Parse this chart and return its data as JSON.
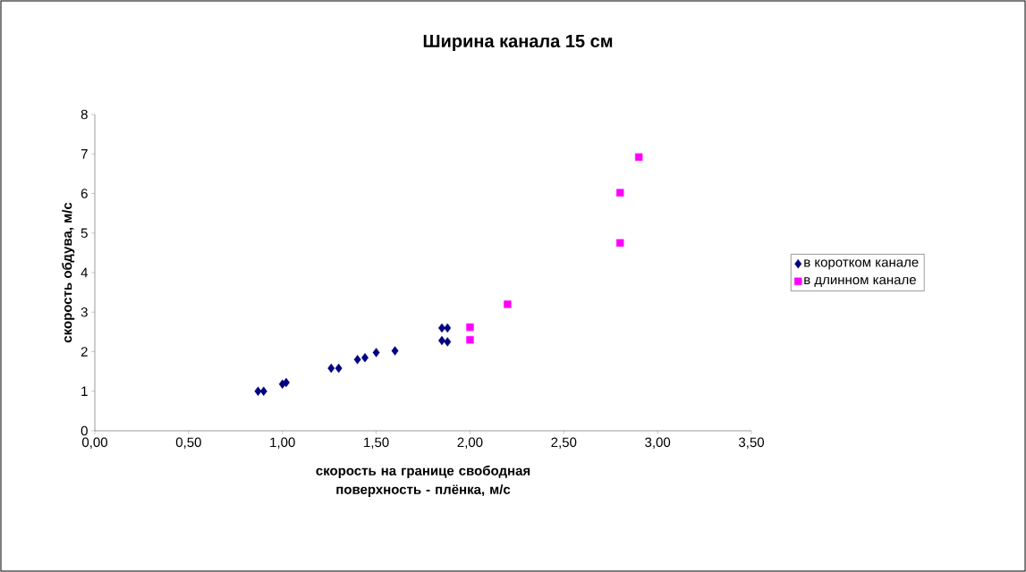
{
  "chart_data": {
    "type": "scatter",
    "title": "Ширина канала 15 см",
    "xlabel": "скорость на границе свободная поверхность  - плёнка, м/с",
    "ylabel": "скорость обдува, м/с",
    "xlim": [
      0,
      3.5
    ],
    "xticks": [
      {
        "value": 0,
        "label": "0,00"
      },
      {
        "value": 0.5,
        "label": "0,50"
      },
      {
        "value": 1,
        "label": "1,00"
      },
      {
        "value": 1.5,
        "label": "1,50"
      },
      {
        "value": 2,
        "label": "2,00"
      },
      {
        "value": 2.5,
        "label": "2,50"
      },
      {
        "value": 3,
        "label": "3,00"
      },
      {
        "value": 3.5,
        "label": "3,50"
      }
    ],
    "ylim": [
      0,
      8
    ],
    "yticks": [
      0,
      1,
      2,
      3,
      4,
      5,
      6,
      7,
      8
    ],
    "grid": false,
    "legend": "right",
    "series": [
      {
        "name": "в коротком канале",
        "color": "#000080",
        "marker": "diamond",
        "x": [
          0.87,
          0.9,
          1.0,
          1.02,
          1.26,
          1.3,
          1.4,
          1.44,
          1.5,
          1.6,
          1.85,
          1.88,
          1.85,
          1.88
        ],
        "values": [
          1.0,
          1.0,
          1.18,
          1.22,
          1.58,
          1.58,
          1.8,
          1.85,
          1.98,
          2.02,
          2.6,
          2.6,
          2.28,
          2.25
        ]
      },
      {
        "name": "в длинном канале",
        "color": "#ff00ff",
        "marker": "square",
        "x": [
          2.0,
          2.0,
          2.2,
          2.8,
          2.8,
          2.9
        ],
        "values": [
          2.62,
          2.3,
          3.2,
          6.02,
          4.75,
          6.92
        ]
      }
    ]
  }
}
